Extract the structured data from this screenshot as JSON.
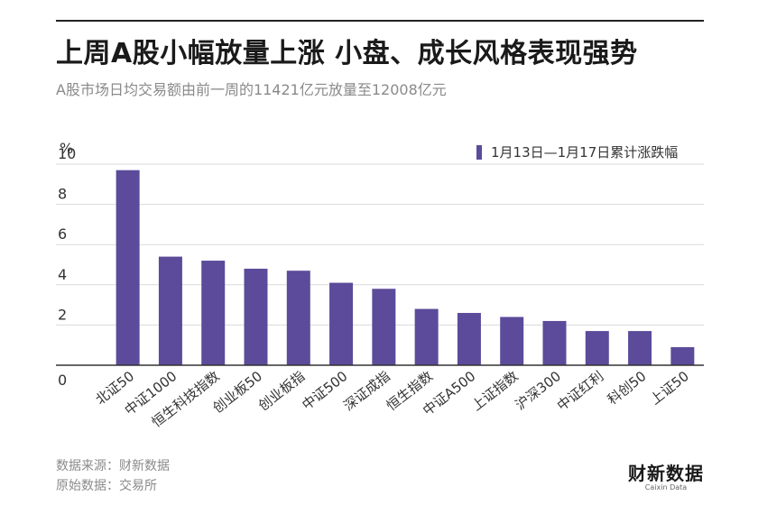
{
  "title": "上周A股小幅放量上涨  小盘、成长风格表现强势",
  "subtitle": "A股市场日均交易额由前一周的11421亿元放量至12008亿元",
  "source_line": "数据来源：财新数据",
  "original_line": "原始数据：交易所",
  "logo": {
    "main": "财新数据",
    "sub": "Caixin Data"
  },
  "colors": {
    "bar": "#5b4b9a",
    "grid": "#d9d9d9",
    "axis": "#333333"
  },
  "chart_data": {
    "type": "bar",
    "unit_label": "%",
    "categories": [
      "北证50",
      "中证1000",
      "恒生科技指数",
      "创业板50",
      "创业板指",
      "中证500",
      "深证成指",
      "恒生指数",
      "中证A500",
      "上证指数",
      "沪深300",
      "中证红利",
      "科创50",
      "上证50"
    ],
    "series": [
      {
        "name": "1月13日—1月17日累计涨跌幅",
        "values": [
          9.7,
          5.4,
          5.2,
          4.8,
          4.7,
          4.1,
          3.8,
          2.8,
          2.6,
          2.4,
          2.2,
          1.7,
          1.7,
          0.9
        ]
      }
    ],
    "ylim": [
      0,
      10
    ],
    "yticks": [
      0,
      2,
      4,
      6,
      8,
      10
    ],
    "grid": true,
    "legend_position": "top-right"
  }
}
